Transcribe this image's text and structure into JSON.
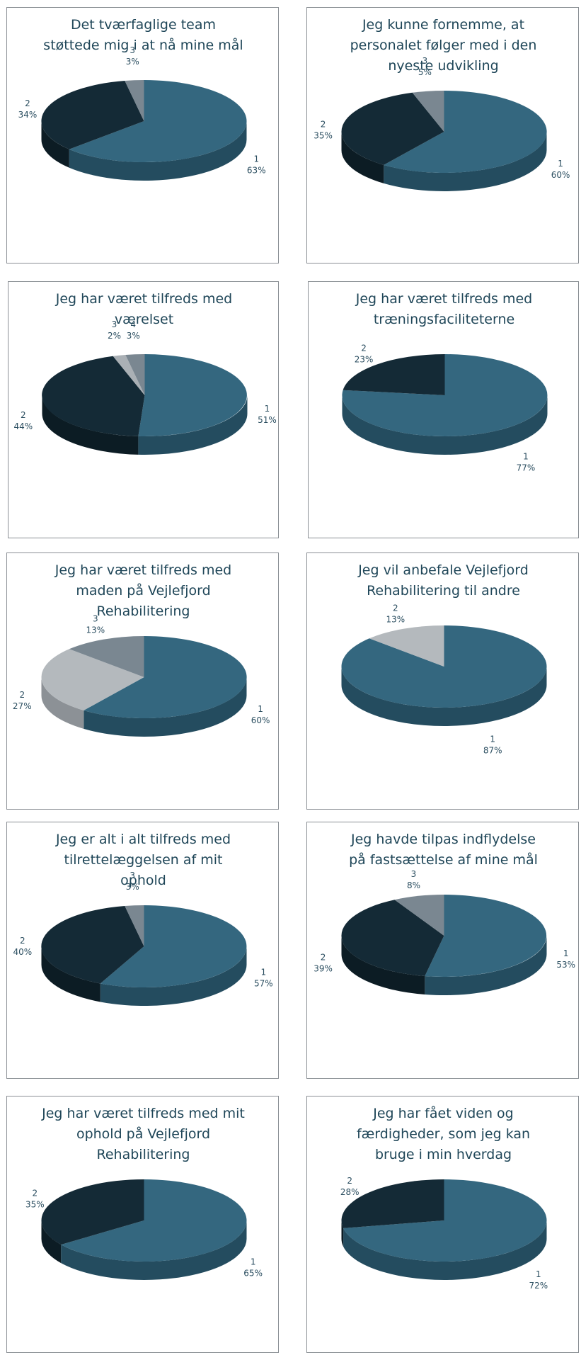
{
  "colors": {
    "s1": "#34677f",
    "s1_side": "#244c5f",
    "s2": "#142a36",
    "s2_side": "#0c1c24",
    "s2_light": "#b4b9bd",
    "s2_light_side": "#8c9196",
    "s3": "#7a8791",
    "s3_side": "#5b6770",
    "s4": "#aab0b5",
    "s4_side": "#858b90",
    "title": "#1f4658",
    "label": "#2b4e60",
    "border": "#8a8f94"
  },
  "chart_data": [
    {
      "type": "pie",
      "title": [
        "Det tværfaglige team",
        "støttede mig i at nå mine mål"
      ],
      "slices": [
        {
          "category": "1",
          "percent_label": "63%",
          "value": 63,
          "color": "s1"
        },
        {
          "category": "2",
          "percent_label": "34%",
          "value": 34,
          "color": "s2"
        },
        {
          "category": "3",
          "percent_label": "3%",
          "value": 3,
          "color": "s3"
        }
      ]
    },
    {
      "type": "pie",
      "title": [
        "Jeg kunne fornemme, at",
        "personalet følger med i den",
        "nyeste udvikling"
      ],
      "slices": [
        {
          "category": "1",
          "percent_label": "60%",
          "value": 60,
          "color": "s1"
        },
        {
          "category": "2",
          "percent_label": "35%",
          "value": 35,
          "color": "s2"
        },
        {
          "category": "3",
          "percent_label": "5%",
          "value": 5,
          "color": "s3"
        }
      ]
    },
    {
      "type": "pie",
      "title": [
        "Jeg har været tilfreds med",
        "værelset"
      ],
      "slices": [
        {
          "category": "1",
          "percent_label": "51%",
          "value": 51,
          "color": "s1"
        },
        {
          "category": "2",
          "percent_label": "44%",
          "value": 44,
          "color": "s2"
        },
        {
          "category": "3",
          "percent_label": "2%",
          "value": 2,
          "color": "s4"
        },
        {
          "category": "4",
          "percent_label": "3%",
          "value": 3,
          "color": "s3"
        }
      ]
    },
    {
      "type": "pie",
      "title": [
        "Jeg har været tilfreds med",
        "træningsfaciliteterne"
      ],
      "slices": [
        {
          "category": "1",
          "percent_label": "77%",
          "value": 77,
          "color": "s1"
        },
        {
          "category": "2",
          "percent_label": "23%",
          "value": 23,
          "color": "s2"
        }
      ]
    },
    {
      "type": "pie",
      "title": [
        "Jeg har været tilfreds med",
        "maden på Vejlefjord",
        "Rehabilitering"
      ],
      "slices": [
        {
          "category": "1",
          "percent_label": "60%",
          "value": 60,
          "color": "s1"
        },
        {
          "category": "2",
          "percent_label": "27%",
          "value": 27,
          "color": "s2_light"
        },
        {
          "category": "3",
          "percent_label": "13%",
          "value": 13,
          "color": "s3"
        }
      ]
    },
    {
      "type": "pie",
      "title": [
        "Jeg vil anbefale Vejlefjord",
        "Rehabilitering til andre"
      ],
      "slices": [
        {
          "category": "1",
          "percent_label": "87%",
          "value": 87,
          "color": "s1"
        },
        {
          "category": "2",
          "percent_label": "13%",
          "value": 13,
          "color": "s2_light"
        }
      ]
    },
    {
      "type": "pie",
      "title": [
        "Jeg er alt i alt tilfreds med",
        "tilrettelæggelsen af mit",
        "ophold"
      ],
      "slices": [
        {
          "category": "1",
          "percent_label": "57%",
          "value": 57,
          "color": "s1"
        },
        {
          "category": "2",
          "percent_label": "40%",
          "value": 40,
          "color": "s2"
        },
        {
          "category": "3",
          "percent_label": "3%",
          "value": 3,
          "color": "s3"
        }
      ]
    },
    {
      "type": "pie",
      "title": [
        "Jeg havde tilpas indflydelse",
        "på fastsættelse af mine mål"
      ],
      "slices": [
        {
          "category": "1",
          "percent_label": "53%",
          "value": 53,
          "color": "s1"
        },
        {
          "category": "2",
          "percent_label": "39%",
          "value": 39,
          "color": "s2"
        },
        {
          "category": "3",
          "percent_label": "8%",
          "value": 8,
          "color": "s3"
        }
      ]
    },
    {
      "type": "pie",
      "title": [
        "Jeg har været tilfreds med mit",
        "ophold på Vejlefjord",
        "Rehabilitering"
      ],
      "slices": [
        {
          "category": "1",
          "percent_label": "65%",
          "value": 65,
          "color": "s1"
        },
        {
          "category": "2",
          "percent_label": "35%",
          "value": 35,
          "color": "s2"
        }
      ]
    },
    {
      "type": "pie",
      "title": [
        "Jeg har fået viden og",
        "færdigheder, som jeg kan",
        "bruge i min hverdag"
      ],
      "slices": [
        {
          "category": "1",
          "percent_label": "72%",
          "value": 72,
          "color": "s1"
        },
        {
          "category": "2",
          "percent_label": "28%",
          "value": 28,
          "color": "s2"
        }
      ]
    }
  ]
}
